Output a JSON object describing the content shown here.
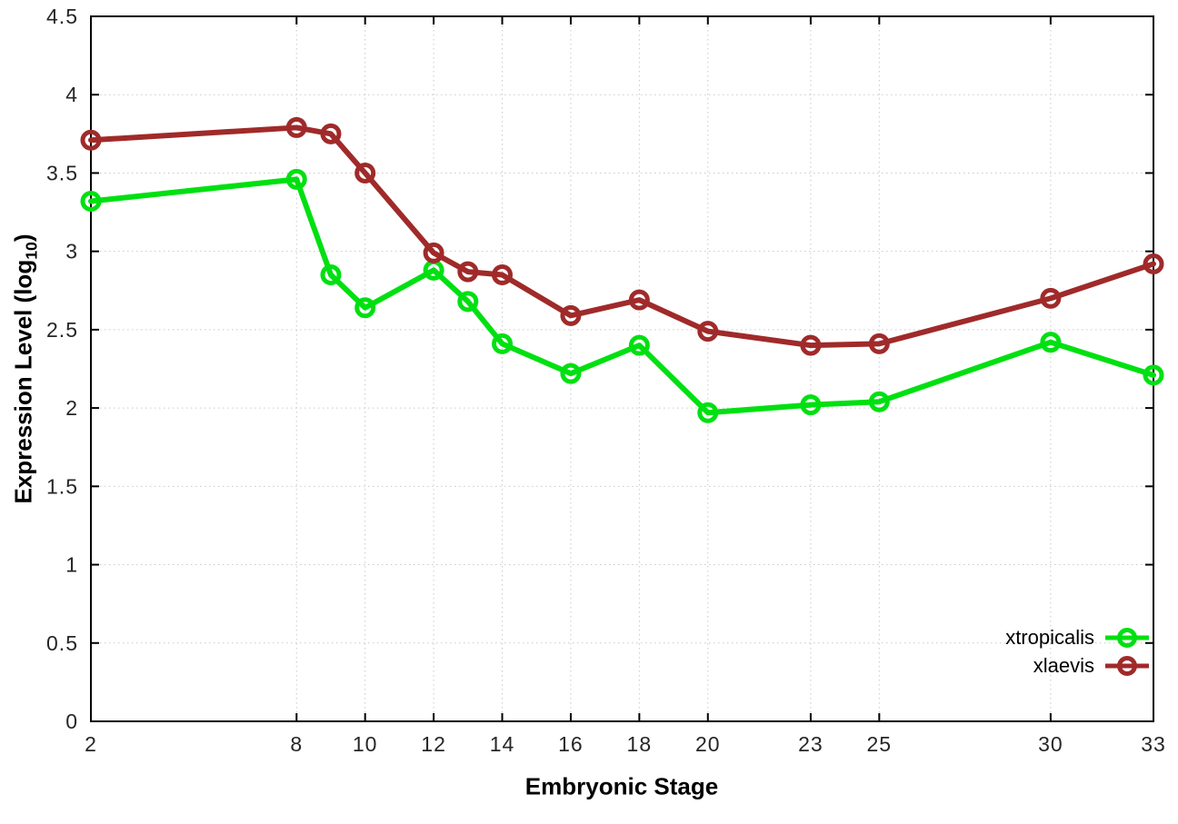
{
  "chart_data": {
    "type": "line",
    "xlabel": "Embryonic Stage",
    "ylabel": {
      "prefix": "Expression Level (log",
      "sub": "10",
      "suffix": ")"
    },
    "xlim": [
      2,
      33
    ],
    "ylim": [
      0,
      4.5
    ],
    "grid": true,
    "legend_position": "bottom-right",
    "x_ticks": [
      2,
      8,
      10,
      12,
      14,
      16,
      18,
      20,
      23,
      25,
      30,
      33
    ],
    "x_tick_labels": [
      "2",
      "8",
      "10",
      "12",
      "14",
      "16",
      "18",
      "20",
      "23",
      "25",
      "30",
      "33"
    ],
    "y_tick_values": [
      0,
      0.5,
      1,
      1.5,
      2,
      2.5,
      3,
      3.5,
      4,
      4.5
    ],
    "y_tick_labels": [
      "0",
      "0.5",
      "1",
      "1.5",
      "2",
      "2.5",
      "3",
      "3.5",
      "4",
      "4.5"
    ],
    "x": [
      2,
      8,
      9,
      10,
      12,
      13,
      14,
      16,
      18,
      20,
      23,
      25,
      30,
      33
    ],
    "series": [
      {
        "name": "xtropicalis",
        "color": "#00e011",
        "values": [
          3.32,
          3.46,
          2.85,
          2.64,
          2.88,
          2.68,
          2.41,
          2.22,
          2.4,
          1.97,
          2.02,
          2.04,
          2.42,
          2.21
        ]
      },
      {
        "name": "xlaevis",
        "color": "#a02a2a",
        "values": [
          3.71,
          3.79,
          3.75,
          3.5,
          2.99,
          2.87,
          2.85,
          2.59,
          2.69,
          2.49,
          2.4,
          2.41,
          2.7,
          2.92
        ]
      }
    ],
    "background": "#ffffff",
    "frame_color": "#000000",
    "grid_color": "#c9c9c9",
    "tick_label_color": "#262626"
  }
}
